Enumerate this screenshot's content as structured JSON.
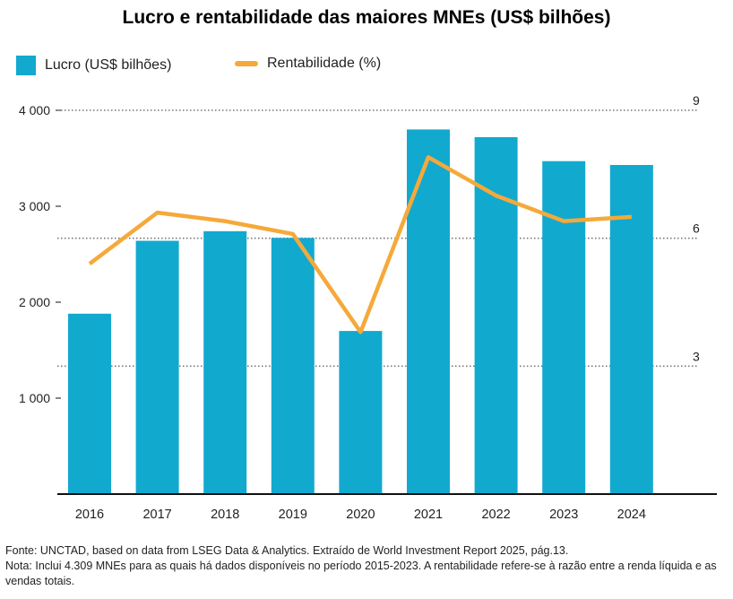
{
  "title": "Lucro e rentabilidade das maiores MNEs (US$ bilhões)",
  "colors": {
    "bar": "#12A9CF",
    "line": "#F5A93A",
    "grid": "#777777",
    "axis": "#111111"
  },
  "chart_data": {
    "type": "bar",
    "categories": [
      "2016",
      "2017",
      "2018",
      "2019",
      "2020",
      "2021",
      "2022",
      "2023",
      "2024"
    ],
    "series": [
      {
        "name": "Lucro (US$ bilhões)",
        "type": "bar",
        "axis": "left",
        "values": [
          1880,
          2640,
          2740,
          2670,
          1700,
          3800,
          3720,
          3470,
          3430
        ]
      },
      {
        "name": "Rentabilidade (%)",
        "type": "line",
        "axis": "right",
        "values": [
          5.4,
          6.6,
          6.4,
          6.1,
          3.8,
          7.9,
          7.0,
          6.4,
          6.5
        ]
      }
    ],
    "ylim_left": [
      0,
      4000
    ],
    "yticks_left": [
      1000,
      2000,
      3000,
      4000
    ],
    "ytick_labels_left": [
      "1 000",
      "2 000",
      "3 000",
      "4 000"
    ],
    "ylim_right": [
      0,
      9
    ],
    "yticks_right": [
      3,
      6,
      9
    ],
    "ytick_labels_right": [
      "3",
      "6",
      "9"
    ],
    "grid": "dotted lines at right-axis ticks",
    "legend": "top-left"
  },
  "footer": {
    "source": "Fonte: UNCTAD, based on data from LSEG Data & Analytics. Extraído de World Investment Report 2025, pág.13.",
    "note": "Nota: Inclui 4.309 MNEs para as quais há dados disponíveis no período 2015-2023. A rentabilidade refere-se à razão entre a renda líquida e as vendas totais."
  }
}
